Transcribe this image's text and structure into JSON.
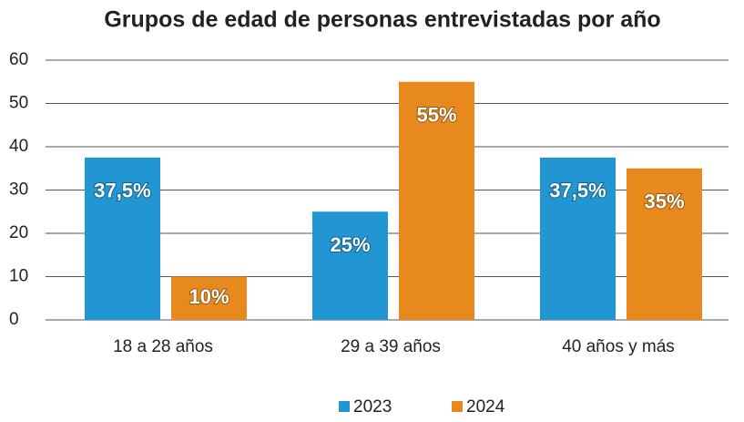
{
  "chart_data": {
    "type": "bar",
    "title": "Grupos de edad de personas entrevistadas por año",
    "categories": [
      "18 a 28 años",
      "29 a 39 años",
      "40 años y más"
    ],
    "series": [
      {
        "name": "2023",
        "color": "#2196d3",
        "values": [
          37.5,
          25,
          37.5
        ],
        "value_labels": [
          "37,5%",
          "25%",
          "37,5%"
        ]
      },
      {
        "name": "2024",
        "color": "#e8891e",
        "values": [
          10,
          55,
          35
        ],
        "value_labels": [
          "10%",
          "55%",
          "35%"
        ]
      }
    ],
    "ylim": [
      0,
      60
    ],
    "yticks": [
      0,
      10,
      20,
      30,
      40,
      50,
      60
    ],
    "grid": true,
    "legend": "bottom"
  }
}
